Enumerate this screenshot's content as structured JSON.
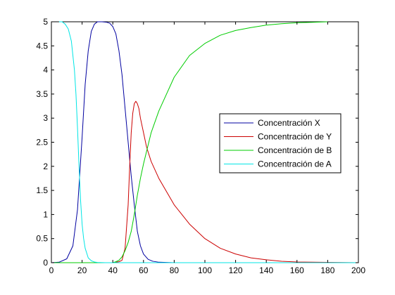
{
  "chart_data": {
    "type": "line",
    "title": "",
    "xlabel": "",
    "ylabel": "",
    "xlim": [
      0,
      200
    ],
    "ylim": [
      0,
      5
    ],
    "xticks": [
      0,
      20,
      40,
      60,
      80,
      100,
      120,
      140,
      160,
      180,
      200
    ],
    "yticks": [
      0,
      0.5,
      1,
      1.5,
      2,
      2.5,
      3,
      3.5,
      4,
      4.5,
      5
    ],
    "xtick_labels": [
      "0",
      "20",
      "40",
      "60",
      "80",
      "100",
      "120",
      "140",
      "160",
      "180",
      "200"
    ],
    "ytick_labels": [
      "0",
      "0.5",
      "1",
      "1.5",
      "2",
      "2.5",
      "3",
      "3.5",
      "4",
      "4.5",
      "5"
    ],
    "grid": false,
    "legend_position": "right",
    "series": [
      {
        "name": "Concentración X",
        "color": "#0000a0",
        "x": [
          0,
          5,
          10,
          14,
          17,
          20,
          22,
          24,
          26,
          28,
          30,
          33,
          36,
          38,
          40,
          42,
          44,
          46,
          48,
          50,
          52,
          54,
          56,
          58,
          60,
          63,
          66,
          70,
          80,
          100,
          200
        ],
        "y": [
          0,
          0.01,
          0.08,
          0.35,
          1.1,
          2.6,
          3.7,
          4.4,
          4.8,
          4.95,
          5.0,
          5.0,
          4.99,
          4.97,
          4.9,
          4.75,
          4.4,
          3.9,
          3.2,
          2.5,
          1.8,
          1.2,
          0.65,
          0.35,
          0.18,
          0.07,
          0.03,
          0.01,
          0,
          0,
          0
        ]
      },
      {
        "name": "Concentración de Y",
        "color": "#cc0000",
        "x": [
          0,
          40,
          44,
          46,
          48,
          50,
          51,
          52,
          53,
          54,
          55,
          56,
          57,
          58,
          60,
          62,
          65,
          70,
          80,
          90,
          100,
          110,
          120,
          130,
          140,
          150,
          160,
          170,
          200
        ],
        "y": [
          0,
          0,
          0.02,
          0.05,
          0.3,
          1.2,
          2.0,
          2.7,
          3.1,
          3.3,
          3.35,
          3.3,
          3.2,
          3.0,
          2.7,
          2.4,
          2.1,
          1.75,
          1.2,
          0.8,
          0.5,
          0.3,
          0.18,
          0.1,
          0.06,
          0.03,
          0.015,
          0.01,
          0
        ]
      },
      {
        "name": "Concentración de B",
        "color": "#00cc00",
        "x": [
          0,
          30,
          40,
          42,
          44,
          46,
          48,
          50,
          52,
          54,
          56,
          58,
          60,
          65,
          70,
          80,
          90,
          100,
          110,
          120,
          130,
          140,
          150,
          160,
          170,
          180
        ],
        "y": [
          0,
          0,
          0,
          0.02,
          0.05,
          0.12,
          0.25,
          0.42,
          0.65,
          1.0,
          1.4,
          1.75,
          2.05,
          2.7,
          3.15,
          3.85,
          4.3,
          4.55,
          4.72,
          4.82,
          4.88,
          4.93,
          4.96,
          4.98,
          4.99,
          5.0
        ]
      },
      {
        "name": "Concentración de A",
        "color": "#00e5e5",
        "x": [
          5,
          7,
          9,
          11,
          13,
          15,
          16,
          17,
          18,
          19,
          20,
          21,
          22,
          24,
          26,
          28,
          30,
          35,
          40,
          60,
          100,
          200
        ],
        "y": [
          5.0,
          5.0,
          4.95,
          4.85,
          4.6,
          4.0,
          3.5,
          2.8,
          2.0,
          1.3,
          0.8,
          0.5,
          0.3,
          0.1,
          0.04,
          0.015,
          0.005,
          0,
          0,
          0,
          0,
          0
        ]
      }
    ]
  }
}
